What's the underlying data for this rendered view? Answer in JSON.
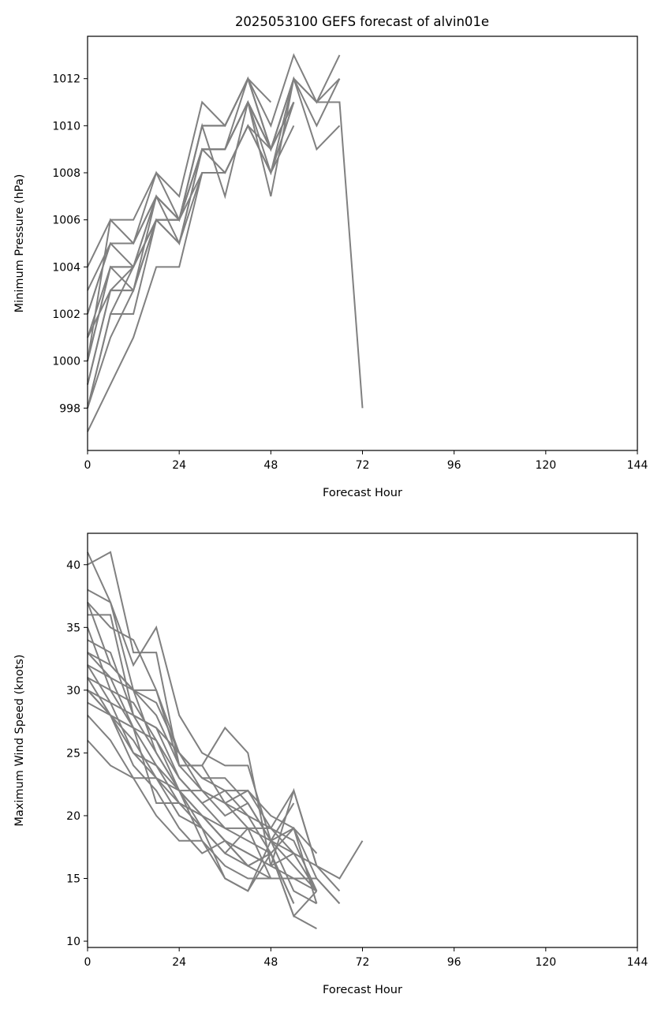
{
  "figure_title": "2025053100 GEFS forecast of alvin01e",
  "line_color": "#808080",
  "chart_data": [
    {
      "type": "line",
      "title": "2025053100 GEFS forecast of alvin01e",
      "xlabel": "Forecast Hour",
      "ylabel": "Minimum Pressure (hPa)",
      "xlim": [
        0,
        144
      ],
      "ylim": [
        996.2,
        1013.8
      ],
      "x_ticks": [
        0,
        24,
        48,
        72,
        96,
        120,
        144
      ],
      "x_tick_labels": [
        "0",
        "24",
        "48",
        "72",
        "96",
        "120",
        "144"
      ],
      "y_ticks": [
        998,
        1000,
        1002,
        1004,
        1006,
        1008,
        1010,
        1012
      ],
      "y_tick_labels": [
        "998",
        "1000",
        "1002",
        "1004",
        "1006",
        "1008",
        "1010",
        "1012"
      ],
      "grid": false,
      "series": [
        {
          "x": [
            0,
            6,
            12,
            18,
            24,
            30,
            36,
            42,
            48,
            54,
            60,
            66,
            72
          ],
          "values": [
            998,
            1002,
            1004,
            1006,
            1006,
            1010,
            1010,
            1012,
            1009,
            1012,
            1011,
            1011,
            998
          ]
        },
        {
          "x": [
            0,
            6,
            12,
            18,
            24,
            30,
            36,
            42,
            48,
            54,
            60,
            66
          ],
          "values": [
            1004,
            1006,
            1006,
            1008,
            1007,
            1011,
            1010,
            1012,
            1010,
            1013,
            1011,
            1013
          ]
        },
        {
          "x": [
            0,
            6,
            12,
            18,
            24,
            30,
            36,
            42,
            48,
            54,
            60,
            66
          ],
          "values": [
            1003,
            1005,
            1005,
            1007,
            1006,
            1010,
            1010,
            1012,
            1009,
            1012,
            1010,
            1012
          ]
        },
        {
          "x": [
            0,
            6,
            12,
            18,
            24,
            30,
            36,
            42,
            48,
            54,
            60,
            66
          ],
          "values": [
            1002,
            1005,
            1005,
            1008,
            1006,
            1009,
            1009,
            1011,
            1009,
            1012,
            1009,
            1010
          ]
        },
        {
          "x": [
            0,
            6,
            12,
            18,
            24,
            30,
            36,
            42,
            48,
            54
          ],
          "values": [
            997,
            999,
            1001,
            1004,
            1004,
            1008,
            1008,
            1010,
            1008,
            1010
          ]
        },
        {
          "x": [
            0,
            6,
            12,
            18,
            24,
            30,
            36,
            42,
            48
          ],
          "values": [
            1000,
            1004,
            1004,
            1007,
            1006,
            1009,
            1009,
            1012,
            1011
          ]
        },
        {
          "x": [
            0,
            6,
            12,
            18,
            24,
            30,
            36,
            42,
            48,
            54
          ],
          "values": [
            999,
            1003,
            1003,
            1006,
            1005,
            1008,
            1008,
            1010,
            1008,
            1011
          ]
        },
        {
          "x": [
            0,
            6,
            12,
            18,
            24,
            30,
            36,
            42,
            48,
            54
          ],
          "values": [
            1001,
            1004,
            1003,
            1007,
            1006,
            1010,
            1007,
            1011,
            1007,
            1012
          ]
        },
        {
          "x": [
            0,
            6,
            12,
            18,
            24,
            30,
            36,
            42,
            48,
            54
          ],
          "values": [
            998,
            1002,
            1002,
            1006,
            1005,
            1009,
            1009,
            1011,
            1009,
            1011
          ]
        },
        {
          "x": [
            0,
            6,
            12,
            18,
            24,
            30,
            36,
            42,
            48,
            54,
            60,
            66
          ],
          "values": [
            1000,
            1006,
            1005,
            1007,
            1006,
            1009,
            1008,
            1010,
            1008,
            1012,
            1011,
            1012
          ]
        },
        {
          "x": [
            0,
            6,
            12,
            18,
            24,
            30,
            36,
            42,
            48,
            54
          ],
          "values": [
            998,
            1001,
            1003,
            1006,
            1006,
            1009,
            1009,
            1011,
            1009,
            1011
          ]
        },
        {
          "x": [
            0,
            6,
            12,
            18,
            24,
            30,
            36,
            42,
            48,
            54
          ],
          "values": [
            1002,
            1005,
            1004,
            1006,
            1006,
            1008,
            1008,
            1010,
            1009,
            1011
          ]
        },
        {
          "x": [
            0,
            6,
            12,
            18,
            24,
            30,
            36,
            42,
            48,
            54
          ],
          "values": [
            999,
            1003,
            1004,
            1007,
            1005,
            1009,
            1009,
            1011,
            1008,
            1011
          ]
        },
        {
          "x": [
            0,
            6,
            12,
            18,
            24,
            30,
            36,
            42,
            48,
            54
          ],
          "values": [
            1000,
            1004,
            1004,
            1006,
            1006,
            1010,
            1010,
            1012,
            1009,
            1012
          ]
        },
        {
          "x": [
            0,
            6,
            12,
            18,
            24,
            30,
            36,
            42,
            48,
            54
          ],
          "values": [
            1001,
            1003,
            1003,
            1006,
            1006,
            1009,
            1009,
            1011,
            1009,
            1011
          ]
        }
      ]
    },
    {
      "type": "line",
      "title": "",
      "xlabel": "Forecast Hour",
      "ylabel": "Maximum Wind Speed (knots)",
      "xlim": [
        0,
        144
      ],
      "ylim": [
        9.5,
        42.5
      ],
      "x_ticks": [
        0,
        24,
        48,
        72,
        96,
        120,
        144
      ],
      "x_tick_labels": [
        "0",
        "24",
        "48",
        "72",
        "96",
        "120",
        "144"
      ],
      "y_ticks": [
        10,
        15,
        20,
        25,
        30,
        35,
        40
      ],
      "y_tick_labels": [
        "10",
        "15",
        "20",
        "25",
        "30",
        "35",
        "40"
      ],
      "grid": false,
      "series": [
        {
          "x": [
            0,
            6,
            12,
            18,
            24,
            30,
            36,
            42,
            48,
            54,
            60,
            66,
            72
          ],
          "values": [
            30,
            28,
            25,
            23,
            22,
            20,
            18,
            17,
            16,
            17,
            16,
            15,
            18
          ]
        },
        {
          "x": [
            0,
            6,
            12,
            18,
            24,
            30,
            36,
            42,
            48,
            54,
            60
          ],
          "values": [
            41,
            37,
            30,
            25,
            22,
            19,
            15,
            14,
            17,
            12,
            11
          ]
        },
        {
          "x": [
            0,
            6,
            12,
            18,
            24,
            30,
            36,
            42,
            48,
            54,
            60,
            66
          ],
          "values": [
            40,
            41,
            33,
            33,
            24,
            24,
            27,
            25,
            16,
            22,
            16,
            14
          ]
        },
        {
          "x": [
            0,
            6,
            12,
            18,
            24,
            30,
            36,
            42,
            48,
            54
          ],
          "values": [
            38,
            37,
            32,
            35,
            28,
            25,
            24,
            24,
            18,
            21
          ]
        },
        {
          "x": [
            0,
            6,
            12,
            18,
            24,
            30,
            36,
            42,
            48,
            54,
            60
          ],
          "values": [
            37,
            35,
            34,
            30,
            24,
            24,
            21,
            22,
            19,
            22,
            16
          ]
        },
        {
          "x": [
            0,
            6,
            12,
            18,
            24,
            30,
            36,
            42,
            48,
            54,
            60
          ],
          "values": [
            36,
            36,
            28,
            27,
            23,
            21,
            22,
            20,
            17,
            19,
            13
          ]
        },
        {
          "x": [
            0,
            6,
            12,
            18,
            24,
            30,
            36,
            42,
            48,
            54,
            60
          ],
          "values": [
            35,
            30,
            29,
            26,
            22,
            22,
            20,
            21,
            18,
            16,
            14
          ]
        },
        {
          "x": [
            0,
            6,
            12,
            18,
            24,
            30,
            36,
            42,
            48,
            54,
            60,
            66
          ],
          "values": [
            33,
            32,
            30,
            29,
            25,
            23,
            22,
            22,
            20,
            19,
            15,
            13
          ]
        },
        {
          "x": [
            0,
            6,
            12,
            18,
            24,
            30,
            36,
            42,
            48,
            54,
            60
          ],
          "values": [
            33,
            31,
            30,
            28,
            24,
            22,
            21,
            20,
            19,
            18,
            14
          ]
        },
        {
          "x": [
            0,
            6,
            12,
            18,
            24,
            30,
            36,
            42,
            48,
            54,
            60
          ],
          "values": [
            32,
            31,
            27,
            26,
            23,
            21,
            19,
            19,
            18,
            17,
            14
          ]
        },
        {
          "x": [
            0,
            6,
            12,
            18,
            24,
            30,
            36,
            42,
            48,
            54
          ],
          "values": [
            32,
            29,
            28,
            25,
            22,
            20,
            18,
            16,
            17,
            13
          ]
        },
        {
          "x": [
            0,
            6,
            12,
            18,
            24,
            30,
            36,
            42,
            48,
            54
          ],
          "values": [
            31,
            30,
            27,
            24,
            21,
            20,
            18,
            17,
            16,
            15
          ]
        },
        {
          "x": [
            0,
            6,
            12,
            18,
            24,
            30,
            36,
            42,
            48,
            54
          ],
          "values": [
            31,
            28,
            26,
            23,
            21,
            19,
            17,
            16,
            15,
            15
          ]
        },
        {
          "x": [
            0,
            6,
            12,
            18,
            24,
            30,
            36,
            42,
            48,
            54
          ],
          "values": [
            30,
            28,
            27,
            21,
            21,
            20,
            19,
            18,
            17,
            13
          ]
        },
        {
          "x": [
            0,
            6,
            12,
            18,
            24,
            30,
            36,
            42,
            48,
            54,
            60
          ],
          "values": [
            30,
            29,
            25,
            24,
            22,
            18,
            16,
            15,
            15,
            15,
            14
          ]
        },
        {
          "x": [
            0,
            6,
            12,
            18,
            24,
            30,
            36,
            42,
            48,
            54,
            60
          ],
          "values": [
            29,
            28,
            24,
            22,
            19,
            17,
            18,
            16,
            17,
            12,
            14
          ]
        },
        {
          "x": [
            0,
            6,
            12,
            18,
            24,
            30,
            36,
            42,
            48,
            54,
            60
          ],
          "values": [
            28,
            26,
            23,
            20,
            18,
            18,
            15,
            14,
            18,
            14,
            13
          ]
        },
        {
          "x": [
            0,
            6,
            12,
            18,
            24,
            30,
            36,
            42,
            48,
            54,
            60,
            66
          ],
          "values": [
            26,
            24,
            23,
            23,
            20,
            19,
            17,
            19,
            15,
            15,
            15,
            13
          ]
        },
        {
          "x": [
            0,
            6,
            12,
            18,
            24,
            30,
            36,
            42,
            48,
            54,
            60
          ],
          "values": [
            37,
            32,
            30,
            30,
            25,
            23,
            23,
            21,
            18,
            19,
            17
          ]
        },
        {
          "x": [
            0,
            6,
            12,
            18,
            24,
            30,
            36,
            42,
            48,
            54
          ],
          "values": [
            34,
            33,
            28,
            27,
            25,
            22,
            21,
            19,
            19,
            17
          ]
        }
      ]
    }
  ]
}
